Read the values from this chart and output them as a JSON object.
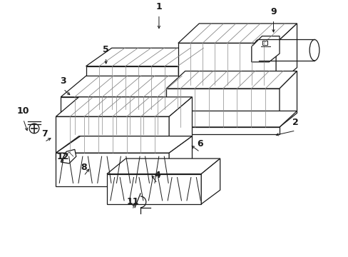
{
  "bg_color": "#ffffff",
  "line_color": "#1a1a1a",
  "gray_color": "#888888",
  "figsize": [
    4.89,
    3.6
  ],
  "dpi": 100,
  "label_arrows": {
    "1": [
      0.455,
      0.96,
      0.455,
      0.895
    ],
    "2": [
      0.855,
      0.5,
      0.79,
      0.48
    ],
    "3": [
      0.175,
      0.665,
      0.2,
      0.635
    ],
    "4": [
      0.45,
      0.29,
      0.43,
      0.33
    ],
    "5": [
      0.3,
      0.79,
      0.3,
      0.755
    ],
    "6": [
      0.575,
      0.415,
      0.545,
      0.445
    ],
    "7": [
      0.12,
      0.455,
      0.145,
      0.475
    ],
    "8": [
      0.235,
      0.32,
      0.255,
      0.355
    ],
    "9": [
      0.79,
      0.94,
      0.79,
      0.88
    ],
    "10": [
      0.058,
      0.545,
      0.072,
      0.49
    ],
    "11": [
      0.378,
      0.185,
      0.385,
      0.22
    ],
    "12": [
      0.175,
      0.365,
      0.168,
      0.398
    ]
  }
}
